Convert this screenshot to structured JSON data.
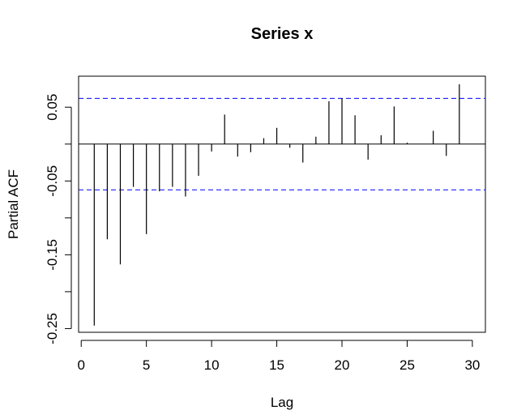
{
  "chart_data": {
    "type": "bar",
    "title": "Series  x",
    "xlabel": "Lag",
    "ylabel": "Partial ACF",
    "xlim": [
      -0.2,
      31.0
    ],
    "ylim": [
      -0.255,
      0.092
    ],
    "x_ticks": [
      0,
      5,
      10,
      15,
      20,
      25,
      30
    ],
    "x_tick_labels": [
      "0",
      "5",
      "10",
      "15",
      "20",
      "25",
      "30"
    ],
    "y_ticks": [
      -0.25,
      -0.2,
      -0.15,
      -0.1,
      -0.05,
      0.0,
      0.05
    ],
    "y_tick_labels": [
      "-0.25",
      "",
      "-0.15",
      "",
      "-0.05",
      "",
      "0.05"
    ],
    "confidence_bound": 0.062,
    "bound_color": "#0000FF",
    "lags": [
      1,
      2,
      3,
      4,
      5,
      6,
      7,
      8,
      9,
      10,
      11,
      12,
      13,
      14,
      15,
      16,
      17,
      18,
      19,
      20,
      21,
      22,
      23,
      24,
      25,
      26,
      27,
      28,
      29
    ],
    "values": [
      -0.246,
      -0.129,
      -0.163,
      -0.058,
      -0.122,
      -0.064,
      -0.058,
      -0.071,
      -0.043,
      -0.01,
      0.04,
      -0.017,
      -0.011,
      0.008,
      0.022,
      -0.005,
      -0.025,
      0.01,
      0.058,
      0.062,
      0.039,
      -0.021,
      0.012,
      0.051,
      0.002,
      0.0,
      0.018,
      -0.016,
      0.081
    ],
    "grid": false,
    "legend": "none"
  }
}
